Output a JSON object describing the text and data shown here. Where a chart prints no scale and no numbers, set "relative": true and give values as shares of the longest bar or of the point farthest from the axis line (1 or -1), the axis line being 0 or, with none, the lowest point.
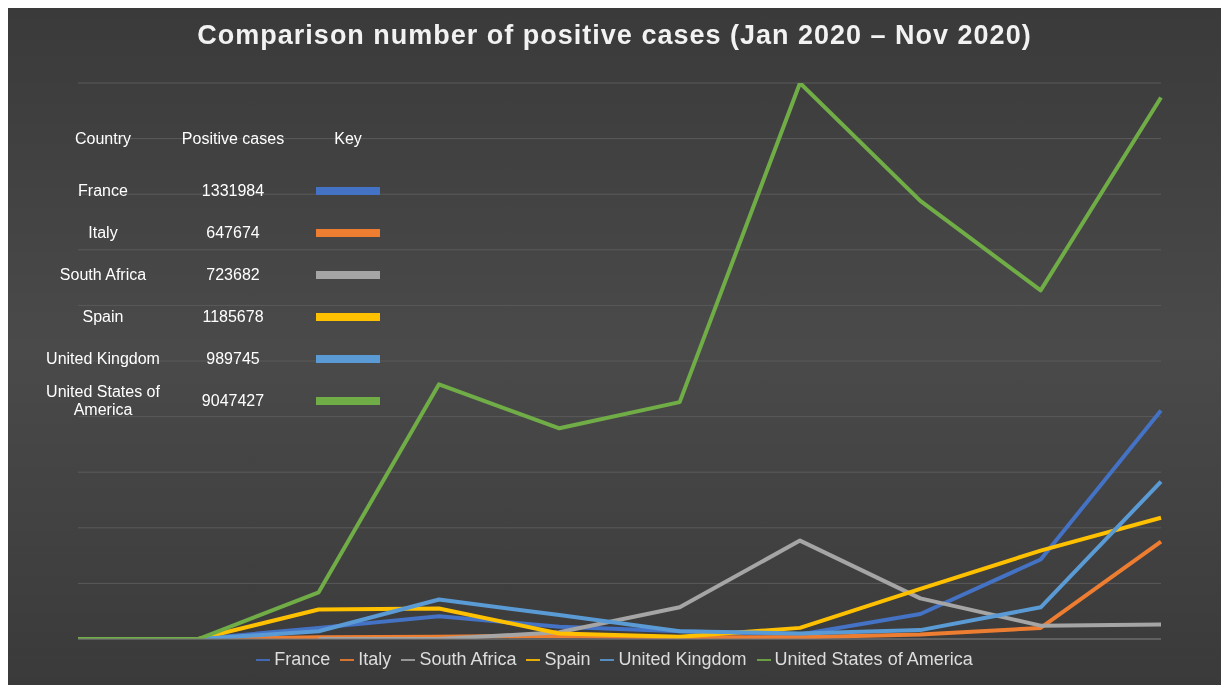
{
  "chart_data": {
    "type": "line",
    "title": "Comparison number of positive cases (Jan 2020 – Nov 2020)",
    "relative": true,
    "grid": "y",
    "legend": "bottom",
    "marker": "none",
    "categories": [
      null,
      null,
      null,
      null,
      null,
      null,
      null,
      null,
      null,
      null
    ],
    "series": [
      {
        "name": "France",
        "color": "#4472c4",
        "values": [
          0,
          0,
          0.02,
          0.041,
          0.022,
          0.014,
          0.008,
          0.045,
          0.143,
          0.411
        ]
      },
      {
        "name": "Italy",
        "color": "#ed7d31",
        "values": [
          0,
          0,
          0.003,
          0.004,
          0.006,
          0.003,
          0.003,
          0.008,
          0.02,
          0.175
        ]
      },
      {
        "name": "South Africa",
        "color": "#a5a5a5",
        "values": [
          null,
          null,
          0,
          0,
          0.012,
          0.057,
          0.177,
          0.073,
          0.024,
          0.026
        ]
      },
      {
        "name": "Spain",
        "color": "#ffc000",
        "values": [
          0,
          0,
          0.053,
          0.055,
          0.01,
          0.004,
          0.02,
          0.09,
          0.159,
          0.218
        ]
      },
      {
        "name": "United Kingdom",
        "color": "#5b9bd5",
        "values": [
          0,
          0,
          0.014,
          0.071,
          0.043,
          0.014,
          0.01,
          0.016,
          0.057,
          0.283
        ]
      },
      {
        "name": "United States of America",
        "color": "#70ad47",
        "values": [
          0,
          0,
          0.084,
          0.458,
          0.379,
          0.426,
          1,
          0.788,
          0.627,
          0.974
        ]
      }
    ],
    "annotations": [
      "Country",
      "Positive cases",
      "Key",
      "France",
      "1331984",
      "Italy",
      "647674",
      "South Africa",
      "723682",
      "Spain",
      "1185678",
      "United Kingdom",
      "989745",
      "United States of America",
      "9047427"
    ]
  }
}
